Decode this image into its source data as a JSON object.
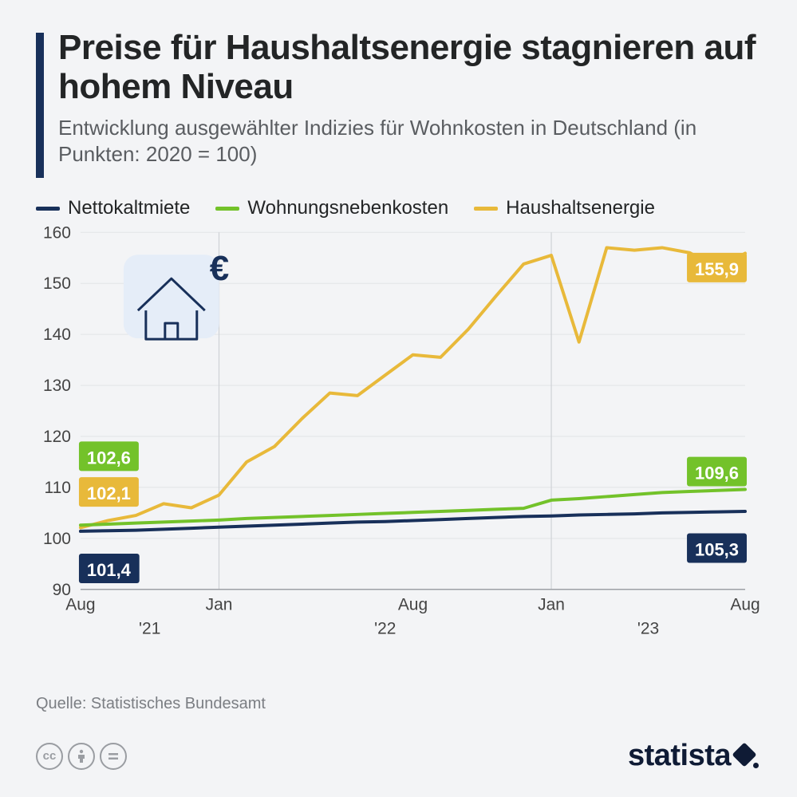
{
  "header": {
    "title": "Preise für Haushaltsenergie stagnieren auf hohem Niveau",
    "subtitle": "Entwicklung ausgewählter Indizies für Wohnkosten in Deutschland (in Punkten: 2020 = 100)"
  },
  "legend": {
    "s1": "Nettokaltmiete",
    "s2": "Wohnungsnebenkosten",
    "s3": "Haushaltsenergie"
  },
  "colors": {
    "s1": "#18305a",
    "s2": "#73c22a",
    "s3": "#e8b93a",
    "accent": "#18305a",
    "grid": "#e1e3e6",
    "bg": "#f3f4f6"
  },
  "chart": {
    "type": "line",
    "ylim": [
      90,
      160
    ],
    "ytick_step": 10,
    "x_index": [
      0,
      1,
      2,
      3,
      4,
      5,
      6,
      7,
      8,
      9,
      10,
      11,
      12,
      13,
      14,
      15,
      16,
      17,
      18,
      19,
      20,
      21,
      22,
      23,
      24
    ],
    "x_major_labels": [
      "Aug",
      "Jan",
      "Aug",
      "Jan",
      "Aug"
    ],
    "x_major_at": [
      0,
      5,
      12,
      17,
      24
    ],
    "x_year_labels": [
      "'21",
      "'22",
      "'23"
    ],
    "x_year_at": [
      2.5,
      11,
      20.5
    ],
    "x_vgrid_at": [
      5,
      17
    ],
    "line_width": 4,
    "title_fontsize": 44,
    "label_fontsize": 21,
    "background_color": "#f3f4f6",
    "grid_color": "#e1e3e6",
    "series": {
      "s1": {
        "color": "#18305a",
        "values": [
          101.4,
          101.5,
          101.6,
          101.8,
          102.0,
          102.2,
          102.4,
          102.6,
          102.8,
          103.0,
          103.2,
          103.3,
          103.5,
          103.7,
          103.9,
          104.1,
          104.3,
          104.4,
          104.6,
          104.7,
          104.8,
          105.0,
          105.1,
          105.2,
          105.3
        ],
        "start_label": "101,4",
        "end_label": "105,3"
      },
      "s2": {
        "color": "#73c22a",
        "values": [
          102.6,
          102.8,
          103.0,
          103.2,
          103.4,
          103.6,
          103.9,
          104.1,
          104.3,
          104.5,
          104.7,
          104.9,
          105.1,
          105.3,
          105.5,
          105.7,
          105.9,
          107.5,
          107.8,
          108.2,
          108.6,
          109.0,
          109.2,
          109.4,
          109.6
        ],
        "start_label": "102,6",
        "end_label": "109,6"
      },
      "s3": {
        "color": "#e8b93a",
        "values": [
          102.1,
          103.5,
          104.5,
          106.8,
          106.0,
          108.5,
          115.0,
          118.0,
          123.5,
          128.5,
          128.0,
          132.0,
          136.0,
          135.5,
          141.0,
          147.5,
          153.8,
          155.5,
          138.5,
          157.0,
          156.5,
          157.0,
          156.0,
          153.0,
          155.9
        ],
        "start_label": "102,1",
        "end_label": "155,9"
      }
    }
  },
  "source": "Quelle: Statistisches Bundesamt",
  "brand": "statista",
  "icon": {
    "euro": "€"
  }
}
